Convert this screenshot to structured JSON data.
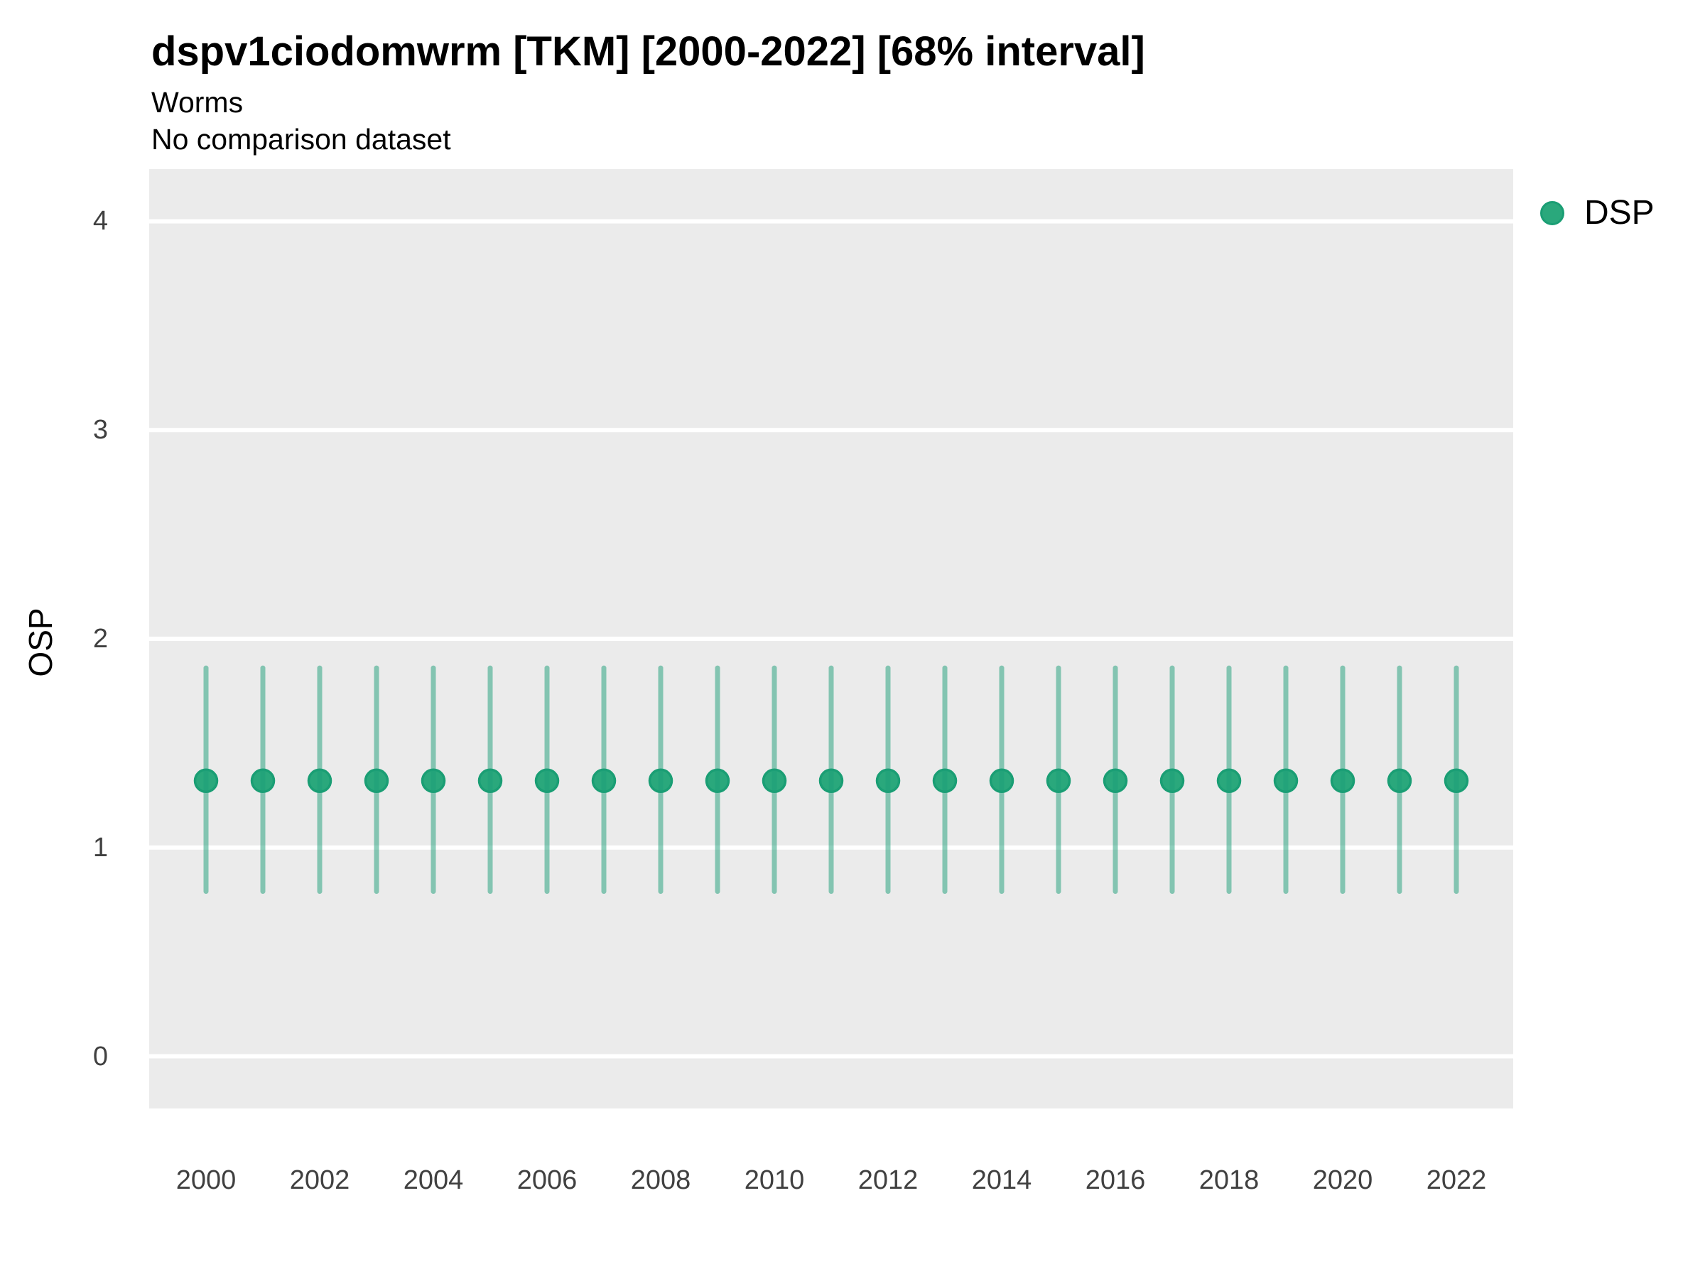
{
  "header": {
    "title": "dspv1ciodomwrm [TKM] [2000-2022] [68% interval]",
    "subtitle": "Worms",
    "note": "No comparison dataset"
  },
  "legend": {
    "label": "DSP",
    "position": "right"
  },
  "chart_data": {
    "type": "scatter",
    "title": "dspv1ciodomwrm [TKM] [2000-2022] [68% interval]",
    "subtitle": "Worms",
    "note": "No comparison dataset",
    "xlabel": "",
    "ylabel": "OSP",
    "interval_level": "68%",
    "x": [
      2000,
      2001,
      2002,
      2003,
      2004,
      2005,
      2006,
      2007,
      2008,
      2009,
      2010,
      2011,
      2012,
      2013,
      2014,
      2015,
      2016,
      2017,
      2018,
      2019,
      2020,
      2021,
      2022
    ],
    "series": [
      {
        "name": "DSP",
        "mid": [
          1.32,
          1.32,
          1.32,
          1.32,
          1.32,
          1.32,
          1.32,
          1.32,
          1.32,
          1.32,
          1.32,
          1.32,
          1.32,
          1.32,
          1.32,
          1.32,
          1.32,
          1.32,
          1.32,
          1.32,
          1.32,
          1.32,
          1.32
        ],
        "lower": [
          0.79,
          0.79,
          0.79,
          0.79,
          0.79,
          0.79,
          0.79,
          0.79,
          0.79,
          0.79,
          0.79,
          0.79,
          0.79,
          0.79,
          0.79,
          0.79,
          0.79,
          0.79,
          0.79,
          0.79,
          0.79,
          0.79,
          0.79
        ],
        "upper": [
          1.86,
          1.86,
          1.86,
          1.86,
          1.86,
          1.86,
          1.86,
          1.86,
          1.86,
          1.86,
          1.86,
          1.86,
          1.86,
          1.86,
          1.86,
          1.86,
          1.86,
          1.86,
          1.86,
          1.86,
          1.86,
          1.86,
          1.86
        ]
      }
    ],
    "ylim": [
      -0.25,
      4.25
    ],
    "yticks": [
      "0",
      "1",
      "2",
      "3",
      "4"
    ],
    "ytick_values": [
      0,
      1,
      2,
      3,
      4
    ],
    "xticks": [
      "2000",
      "2002",
      "2004",
      "2006",
      "2008",
      "2010",
      "2012",
      "2014",
      "2016",
      "2018",
      "2020",
      "2022"
    ],
    "xtick_values": [
      2000,
      2002,
      2004,
      2006,
      2008,
      2010,
      2012,
      2014,
      2016,
      2018,
      2020,
      2022
    ],
    "grid": "major horizontal white lines on gray panel",
    "legend_position": "right",
    "colors": {
      "point": "#2AA87C",
      "point_border": "#1A9E74",
      "interval": "#1B9E77",
      "interval_opacity": 0.5,
      "panel_bg": "#EBEBEB",
      "gridline": "#FFFFFF",
      "tick_text": "#404040"
    }
  }
}
